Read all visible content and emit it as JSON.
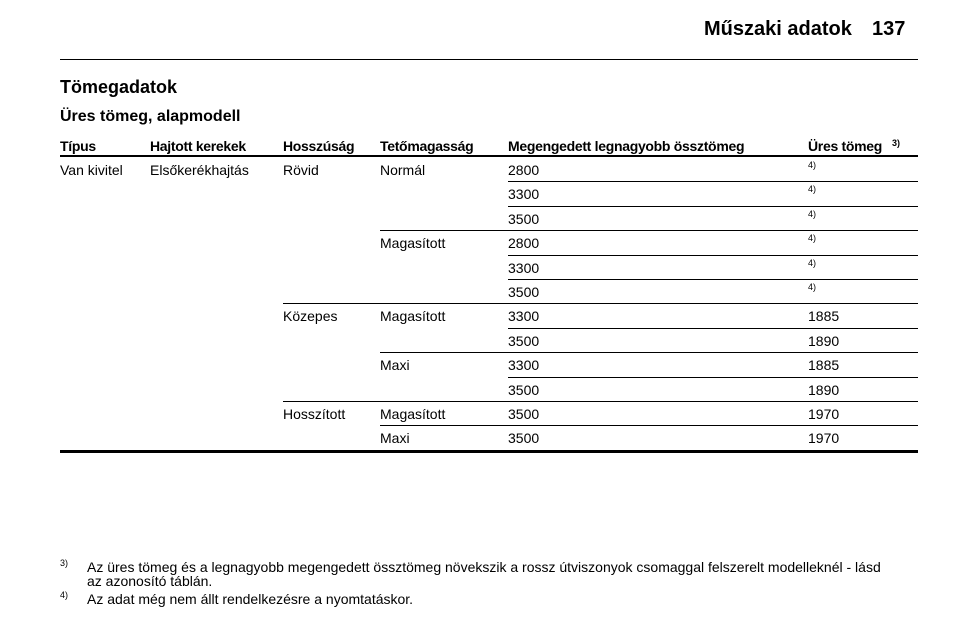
{
  "header": {
    "title": "Műszaki adatok",
    "page": 137
  },
  "section_title": "Tömegadatok",
  "subsection_title": "Üres tömeg, alapmodell",
  "table": {
    "columns": [
      "Típus",
      "Hajtott kerekek",
      "Hosszúság",
      "Tetőmagasság",
      "Megengedett legnagyobb össztömeg",
      "Üres tömeg"
    ],
    "last_column_note": "3)",
    "rows": [
      {
        "type": "Van kivitel",
        "drive": "Elsőkerékhajtás",
        "length": "Rövid",
        "roof": "Normál",
        "gross": 2800,
        "empty_note": "4)"
      },
      {
        "gross": 3300,
        "empty_note": "4)"
      },
      {
        "gross": 3500,
        "empty_note": "4)"
      },
      {
        "roof": "Magasított",
        "gross": 2800,
        "empty_note": "4)"
      },
      {
        "gross": 3300,
        "empty_note": "4)"
      },
      {
        "gross": 3500,
        "empty_note": "4)"
      },
      {
        "length": "Közepes",
        "roof": "Magasított",
        "gross": 3300,
        "empty": 1885
      },
      {
        "gross": 3500,
        "empty": 1890
      },
      {
        "roof": "Maxi",
        "gross": 3300,
        "empty": 1885
      },
      {
        "gross": 3500,
        "empty": 1890
      },
      {
        "length": "Hosszított",
        "roof": "Magasított",
        "gross": 3500,
        "empty": 1970
      },
      {
        "roof": "Maxi",
        "gross": 3500,
        "empty": 1970
      }
    ]
  },
  "footnotes": [
    {
      "mark": "3)",
      "text": "Az üres tömeg és a legnagyobb megengedett össztömeg növekszik a rossz útviszonyok csomaggal felszerelt modelleknél - lásd az azonosító táblán."
    },
    {
      "mark": "4)",
      "text": "Az adat még nem állt rendelkezésre a nyomtatáskor."
    }
  ]
}
